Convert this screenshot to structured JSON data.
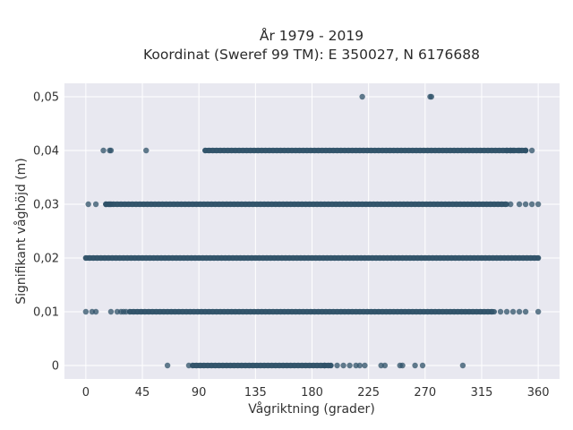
{
  "chart_data": {
    "type": "scatter",
    "title": "År 1979 - 2019",
    "subtitle": "Koordinat (Sweref 99 TM): E 350027, N 6176688",
    "xlabel": "Vågriktning (grader)",
    "ylabel": "Signifikant våghöjd (m)",
    "xlim": [
      -17,
      377
    ],
    "ylim": [
      -0.0025,
      0.0525
    ],
    "xticks": [
      0,
      45,
      90,
      135,
      180,
      225,
      270,
      315,
      360
    ],
    "xtick_labels": [
      "0",
      "45",
      "90",
      "135",
      "180",
      "225",
      "270",
      "315",
      "360"
    ],
    "yticks": [
      0,
      0.01,
      0.02,
      0.03,
      0.04,
      0.05
    ],
    "ytick_labels": [
      "0",
      "0,01",
      "0,02",
      "0,03",
      "0,04",
      "0,05"
    ],
    "grid": true,
    "background": "#e8e8f0",
    "marker_color": "#2f5168",
    "bands": [
      {
        "y": 0.05,
        "x_range": [
          220,
          275
        ],
        "isolated_x": [
          220,
          274,
          275
        ]
      },
      {
        "y": 0.04,
        "x_range": [
          95,
          355
        ],
        "dense_x_range": [
          95,
          350
        ],
        "isolated_x": [
          14,
          19,
          20,
          48,
          335,
          338,
          340,
          345,
          350,
          355
        ]
      },
      {
        "y": 0.03,
        "x_range": [
          2,
          360
        ],
        "dense_x_range": [
          16,
          335
        ],
        "isolated_x": [
          2,
          8,
          16,
          18,
          20,
          338,
          345,
          350,
          355,
          360
        ]
      },
      {
        "y": 0.02,
        "x_range": [
          0,
          360
        ],
        "dense_x_range": [
          0,
          360
        ],
        "isolated_x": []
      },
      {
        "y": 0.01,
        "x_range": [
          0,
          360
        ],
        "dense_x_range": [
          35,
          325
        ],
        "isolated_x": [
          0,
          5,
          8,
          20,
          25,
          28,
          30,
          32,
          330,
          335,
          340,
          345,
          350,
          360
        ]
      },
      {
        "y": 0.0,
        "x_range": [
          65,
          300
        ],
        "dense_x_range": [
          85,
          195
        ],
        "isolated_x": [
          65,
          82,
          190,
          195,
          200,
          205,
          210,
          215,
          218,
          222,
          235,
          238,
          250,
          252,
          262,
          268,
          300
        ]
      }
    ]
  }
}
